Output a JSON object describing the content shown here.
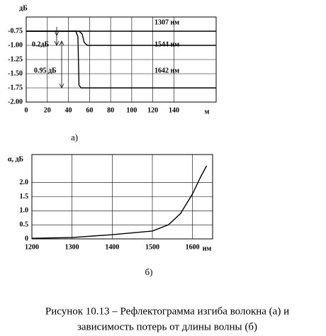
{
  "chart_data": [
    {
      "type": "line",
      "title": "а)",
      "xlabel": "м",
      "ylabel": "дБ",
      "annotations": [
        "1307 нм",
        "1544 нм",
        "1642 нм",
        "0.2дБ",
        "0.95 дБ"
      ],
      "xlim": [
        0,
        180
      ],
      "ylim": [
        -2.0,
        -0.5
      ],
      "xticks": [
        0,
        20,
        40,
        60,
        80,
        100,
        120,
        140
      ],
      "yticks": [
        {
          "value": -2.0,
          "label": "-2.00"
        },
        -1.75,
        {
          "value": -1.5,
          "label": "-1.50"
        },
        -1.25,
        {
          "value": -1.0,
          "label": "-1.00"
        },
        -0.75
      ],
      "grid": true,
      "series": [
        {
          "name": "1307 нм",
          "color": "#000000",
          "x": [
            0,
            180
          ],
          "values": [
            -0.75,
            -0.75
          ]
        },
        {
          "name": "1544 нм",
          "color": "#000000",
          "x": [
            0,
            50,
            53,
            55,
            58,
            180
          ],
          "values": [
            -0.75,
            -0.75,
            -0.8,
            -0.95,
            -1.0,
            -1.0
          ]
        },
        {
          "name": "1642 нм",
          "color": "#000000",
          "x": [
            0,
            47,
            49,
            50,
            52,
            180
          ],
          "values": [
            -0.75,
            -0.75,
            -0.85,
            -1.7,
            -1.75,
            -1.75
          ]
        }
      ]
    },
    {
      "type": "line",
      "title": "б)",
      "xlabel": "нм",
      "ylabel": "α, дБ",
      "xlim": [
        1200,
        1650
      ],
      "ylim": [
        0,
        3.0
      ],
      "xticks": [
        1200,
        1300,
        1400,
        1500,
        1600
      ],
      "yticks": [
        0,
        0.5,
        {
          "value": 1.0,
          "label": "1.0"
        },
        1.5,
        {
          "value": 2.0,
          "label": "2.0"
        }
      ],
      "grid": true,
      "series": [
        {
          "name": "α",
          "color": "#000000",
          "x": [
            1200,
            1300,
            1400,
            1500,
            1540,
            1570,
            1600,
            1620,
            1635
          ],
          "values": [
            0.02,
            0.05,
            0.15,
            0.28,
            0.5,
            0.9,
            1.6,
            2.2,
            2.6
          ]
        }
      ]
    }
  ],
  "caption": [
    "Рисунок 10.13 – Рефлектограмма изгиба волокна (а) и",
    "зависимость потерь от длины волны (б)"
  ]
}
